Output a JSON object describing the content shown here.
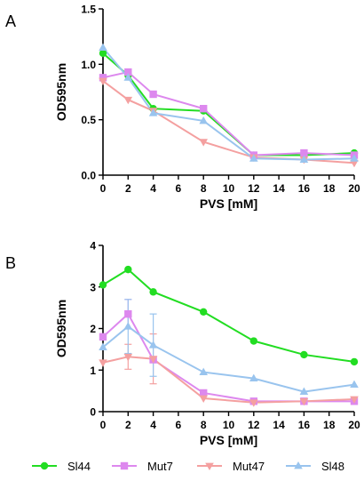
{
  "figure": {
    "legend": [
      {
        "name": "Sl44",
        "color": "#22dd22",
        "marker": "circle"
      },
      {
        "name": "Mut7",
        "color": "#dd88ee",
        "marker": "square"
      },
      {
        "name": "Mut47",
        "color": "#f4a0a0",
        "marker": "triangle-down"
      },
      {
        "name": "Sl48",
        "color": "#99c4ee",
        "marker": "triangle-up"
      }
    ],
    "legend_position": "bottom"
  },
  "chart_data": [
    {
      "panel": "A",
      "type": "line",
      "xlabel": "PVS [mM]",
      "ylabel": "OD595nm",
      "xlim": [
        0,
        20
      ],
      "ylim": [
        0,
        1.5
      ],
      "xticks": [
        0,
        2,
        4,
        6,
        8,
        10,
        12,
        14,
        16,
        18,
        20
      ],
      "yticks": [
        0.0,
        0.5,
        1.0,
        1.5
      ],
      "xtick_labels": [
        "0",
        "2",
        "4",
        "6",
        "8",
        "10",
        "12",
        "14",
        "16",
        "18",
        "20"
      ],
      "ytick_labels": [
        "0.0",
        "0.5",
        "1.0",
        "1.5"
      ],
      "x": [
        0,
        2,
        4,
        8,
        12,
        16,
        20
      ],
      "series": [
        {
          "name": "Sl44",
          "marker": "circle",
          "color": "#22dd22",
          "values": [
            1.1,
            0.9,
            0.6,
            0.58,
            0.18,
            0.18,
            0.2
          ]
        },
        {
          "name": "Mut7",
          "marker": "square",
          "color": "#dd88ee",
          "values": [
            0.88,
            0.93,
            0.73,
            0.6,
            0.18,
            0.2,
            0.18
          ]
        },
        {
          "name": "Mut47",
          "marker": "triangle-down",
          "color": "#f4a0a0",
          "values": [
            0.85,
            0.68,
            0.58,
            0.3,
            0.16,
            0.14,
            0.11
          ]
        },
        {
          "name": "Sl48",
          "marker": "triangle-up",
          "color": "#99c4ee",
          "values": [
            1.15,
            0.88,
            0.56,
            0.49,
            0.15,
            0.14,
            0.15
          ]
        }
      ]
    },
    {
      "panel": "B",
      "type": "line",
      "xlabel": "PVS [mM]",
      "ylabel": "OD595nm",
      "xlim": [
        0,
        20
      ],
      "ylim": [
        0,
        4
      ],
      "xticks": [
        0,
        2,
        4,
        6,
        8,
        10,
        12,
        14,
        16,
        18,
        20
      ],
      "yticks": [
        0,
        1,
        2,
        3,
        4
      ],
      "xtick_labels": [
        "0",
        "2",
        "4",
        "6",
        "8",
        "10",
        "12",
        "14",
        "16",
        "18",
        "20"
      ],
      "ytick_labels": [
        "0",
        "1",
        "2",
        "3",
        "4"
      ],
      "x": [
        0,
        2,
        4,
        8,
        12,
        16,
        20
      ],
      "series": [
        {
          "name": "Sl44",
          "marker": "circle",
          "color": "#22dd22",
          "values": [
            3.05,
            3.42,
            2.88,
            2.4,
            1.7,
            1.37,
            1.2
          ]
        },
        {
          "name": "Mut7",
          "marker": "square",
          "color": "#dd88ee",
          "values": [
            1.8,
            2.35,
            1.25,
            0.45,
            0.25,
            0.25,
            0.25
          ],
          "errors": [
            0,
            0.35,
            0,
            0,
            0,
            0,
            0
          ]
        },
        {
          "name": "Mut47",
          "marker": "triangle-down",
          "color": "#f4a0a0",
          "values": [
            1.18,
            1.32,
            1.27,
            0.32,
            0.22,
            0.25,
            0.3
          ],
          "errors": [
            0,
            0.3,
            0.6,
            0,
            0,
            0,
            0
          ]
        },
        {
          "name": "Sl48",
          "marker": "triangle-up",
          "color": "#99c4ee",
          "values": [
            1.55,
            2.05,
            1.6,
            0.95,
            0.8,
            0.48,
            0.65
          ],
          "errors": [
            0,
            0.65,
            0.75,
            0,
            0,
            0,
            0
          ]
        }
      ]
    }
  ]
}
